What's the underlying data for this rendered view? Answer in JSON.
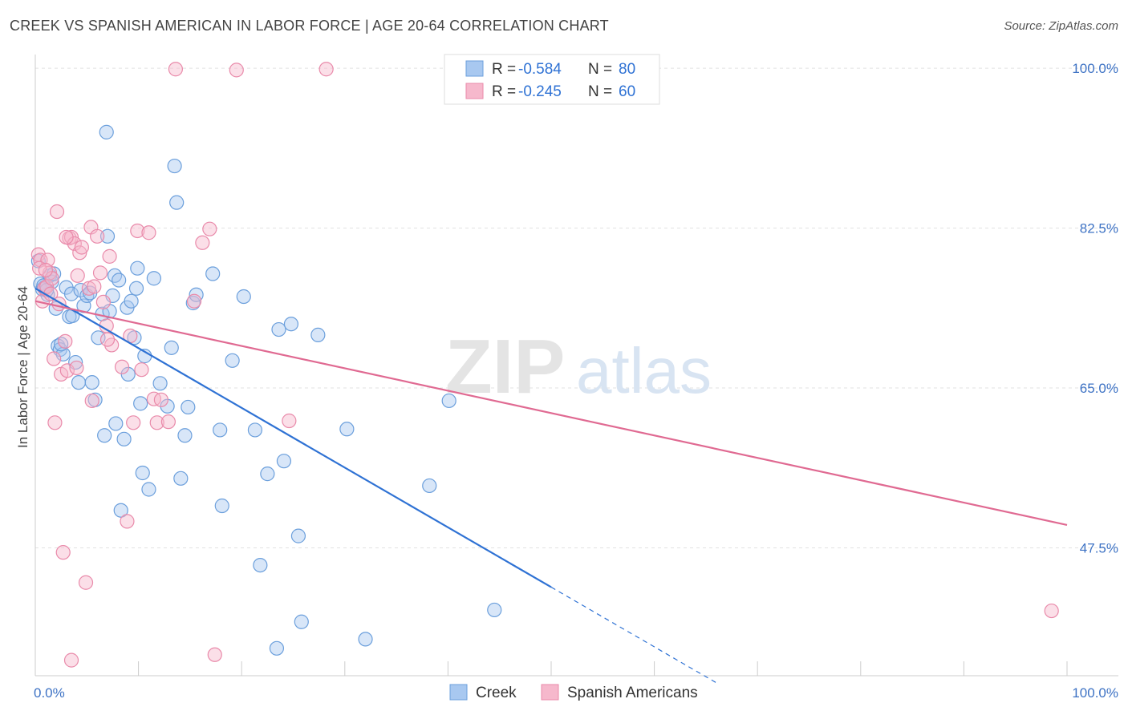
{
  "title": "CREEK VS SPANISH AMERICAN IN LABOR FORCE | AGE 20-64 CORRELATION CHART",
  "source": "Source: ZipAtlas.com",
  "watermark": {
    "zip": "ZIP",
    "atlas": "atlas"
  },
  "legend_box": [
    {
      "label": "R =",
      "r_value": "-0.584",
      "n_label": "N =",
      "n_value": "80",
      "color": "#a8c8f0"
    },
    {
      "label": "R =",
      "r_value": "-0.245",
      "n_label": "N =",
      "n_value": "60",
      "color": "#f6b8cc"
    }
  ],
  "bottom_legend": [
    {
      "label": "Creek",
      "color": "#a8c8f0"
    },
    {
      "label": "Spanish Americans",
      "color": "#f6b8cc"
    }
  ],
  "chart_data": {
    "type": "scatter",
    "xlabel": "",
    "ylabel": "In Labor Force | Age 20-64",
    "xlim": [
      0,
      100
    ],
    "ylim": [
      33.5,
      101.5
    ],
    "x_tick_labels": [
      {
        "value": 0,
        "label": "0.0%"
      },
      {
        "value": 100,
        "label": "100.0%"
      }
    ],
    "y_tick_labels": [
      {
        "value": 47.5,
        "label": "47.5%"
      },
      {
        "value": 65.0,
        "label": "65.0%"
      },
      {
        "value": 82.5,
        "label": "82.5%"
      },
      {
        "value": 100.0,
        "label": "100.0%"
      }
    ],
    "grid": true,
    "series": [
      {
        "name": "Creek",
        "color": "#a8c8f0",
        "stroke": "#6b9fdc",
        "trend": {
          "x0": 0,
          "y0": 75.9,
          "x1": 50,
          "y1": 43.2,
          "dash_to_x": 66
        },
        "trend_color": "#2f72d4",
        "points": [
          [
            0.3,
            78.9
          ],
          [
            0.5,
            76.4
          ],
          [
            0.7,
            75.8
          ],
          [
            0.9,
            76.0
          ],
          [
            1.2,
            75.2
          ],
          [
            1.4,
            77.3
          ],
          [
            1.6,
            76.6
          ],
          [
            1.8,
            77.5
          ],
          [
            2.0,
            73.7
          ],
          [
            2.2,
            69.6
          ],
          [
            2.4,
            69.2
          ],
          [
            2.7,
            68.7
          ],
          [
            3.0,
            76.0
          ],
          [
            3.3,
            72.8
          ],
          [
            3.5,
            75.3
          ],
          [
            3.6,
            72.9
          ],
          [
            3.9,
            67.8
          ],
          [
            4.2,
            65.6
          ],
          [
            4.4,
            75.7
          ],
          [
            4.7,
            74.0
          ],
          [
            5.0,
            75.1
          ],
          [
            5.3,
            75.4
          ],
          [
            5.5,
            65.6
          ],
          [
            5.8,
            63.7
          ],
          [
            6.1,
            70.5
          ],
          [
            6.5,
            73.1
          ],
          [
            6.7,
            59.8
          ],
          [
            6.9,
            93.0
          ],
          [
            7.0,
            81.6
          ],
          [
            7.2,
            73.4
          ],
          [
            7.5,
            75.1
          ],
          [
            7.7,
            77.3
          ],
          [
            7.8,
            61.1
          ],
          [
            8.1,
            76.8
          ],
          [
            8.3,
            51.6
          ],
          [
            8.6,
            59.4
          ],
          [
            8.9,
            73.8
          ],
          [
            9.0,
            66.5
          ],
          [
            9.3,
            74.5
          ],
          [
            9.6,
            70.5
          ],
          [
            9.8,
            75.9
          ],
          [
            9.9,
            78.1
          ],
          [
            10.2,
            63.3
          ],
          [
            10.4,
            55.7
          ],
          [
            10.6,
            68.5
          ],
          [
            11.0,
            53.9
          ],
          [
            11.5,
            77.0
          ],
          [
            12.1,
            65.5
          ],
          [
            12.8,
            63.0
          ],
          [
            13.2,
            69.4
          ],
          [
            13.5,
            89.3
          ],
          [
            13.7,
            85.3
          ],
          [
            14.1,
            55.1
          ],
          [
            14.5,
            59.8
          ],
          [
            14.8,
            62.9
          ],
          [
            15.3,
            74.3
          ],
          [
            15.6,
            75.2
          ],
          [
            17.2,
            77.5
          ],
          [
            17.9,
            60.4
          ],
          [
            18.1,
            52.1
          ],
          [
            19.1,
            68.0
          ],
          [
            20.2,
            75.0
          ],
          [
            21.3,
            60.4
          ],
          [
            21.8,
            45.6
          ],
          [
            22.5,
            55.6
          ],
          [
            23.4,
            36.5
          ],
          [
            23.6,
            71.4
          ],
          [
            24.1,
            57.0
          ],
          [
            24.8,
            72.0
          ],
          [
            25.5,
            48.8
          ],
          [
            25.8,
            39.4
          ],
          [
            27.4,
            70.8
          ],
          [
            30.2,
            60.5
          ],
          [
            32.0,
            37.5
          ],
          [
            38.2,
            54.3
          ],
          [
            40.1,
            63.6
          ],
          [
            44.5,
            40.7
          ],
          [
            0.8,
            76.2
          ],
          [
            1.1,
            75.7
          ],
          [
            2.5,
            69.8
          ]
        ]
      },
      {
        "name": "Spanish Americans",
        "color": "#f6b8cc",
        "stroke": "#e98aaa",
        "trend": {
          "x0": 0,
          "y0": 74.5,
          "x1": 100,
          "y1": 50.0
        },
        "trend_color": "#e06a92",
        "points": [
          [
            0.3,
            79.6
          ],
          [
            0.5,
            79.0
          ],
          [
            0.7,
            74.5
          ],
          [
            0.9,
            75.9
          ],
          [
            1.1,
            76.1
          ],
          [
            1.2,
            79.0
          ],
          [
            1.4,
            77.6
          ],
          [
            1.5,
            75.3
          ],
          [
            1.6,
            77.0
          ],
          [
            1.8,
            68.2
          ],
          [
            1.9,
            61.2
          ],
          [
            2.1,
            84.3
          ],
          [
            2.3,
            74.2
          ],
          [
            2.5,
            66.5
          ],
          [
            2.7,
            47.0
          ],
          [
            2.9,
            70.1
          ],
          [
            3.1,
            66.9
          ],
          [
            3.3,
            81.4
          ],
          [
            3.5,
            81.5
          ],
          [
            3.5,
            35.2
          ],
          [
            3.8,
            80.8
          ],
          [
            4.0,
            67.2
          ],
          [
            4.1,
            77.3
          ],
          [
            4.3,
            79.8
          ],
          [
            4.5,
            80.4
          ],
          [
            4.9,
            43.7
          ],
          [
            5.2,
            75.9
          ],
          [
            5.4,
            82.6
          ],
          [
            5.5,
            63.6
          ],
          [
            5.7,
            76.1
          ],
          [
            6.0,
            81.6
          ],
          [
            6.3,
            77.6
          ],
          [
            6.6,
            74.4
          ],
          [
            6.9,
            71.8
          ],
          [
            7.2,
            79.4
          ],
          [
            7.4,
            69.7
          ],
          [
            8.4,
            67.3
          ],
          [
            8.9,
            50.4
          ],
          [
            9.2,
            70.7
          ],
          [
            9.5,
            61.2
          ],
          [
            9.9,
            82.2
          ],
          [
            10.3,
            67.0
          ],
          [
            11.0,
            82.0
          ],
          [
            11.5,
            63.8
          ],
          [
            11.8,
            61.2
          ],
          [
            12.9,
            61.3
          ],
          [
            13.6,
            99.9
          ],
          [
            15.4,
            74.5
          ],
          [
            16.2,
            80.9
          ],
          [
            16.9,
            82.4
          ],
          [
            17.4,
            35.8
          ],
          [
            19.5,
            99.8
          ],
          [
            24.6,
            61.4
          ],
          [
            28.2,
            99.9
          ],
          [
            98.5,
            40.6
          ],
          [
            12.2,
            63.7
          ],
          [
            0.4,
            78.1
          ],
          [
            1.0,
            77.9
          ],
          [
            3.0,
            81.5
          ],
          [
            7.0,
            70.3
          ]
        ]
      }
    ]
  }
}
